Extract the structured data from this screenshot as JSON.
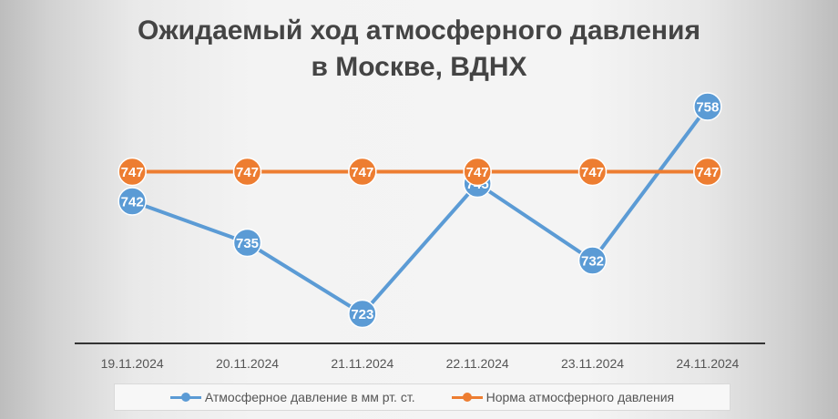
{
  "chart_data": {
    "type": "line",
    "title_line1": "Ожидаемый ход атмосферного давления",
    "title_line2": "в Москве, ВДНХ",
    "categories": [
      "19.11.2024",
      "20.11.2024",
      "21.11.2024",
      "22.11.2024",
      "23.11.2024",
      "24.11.2024"
    ],
    "series": [
      {
        "name": "Атмосферное давление в мм рт. ст.",
        "values": [
          742,
          735,
          723,
          745,
          732,
          758
        ],
        "color": "#5B9BD5"
      },
      {
        "name": "Норма атмосферного давления",
        "values": [
          747,
          747,
          747,
          747,
          747,
          747
        ],
        "color": "#ED7D31"
      }
    ],
    "ylim": [
      718,
      758
    ],
    "y_axis_labels_shown": false,
    "grid": true,
    "legend_position": "bottom",
    "data_labels": true
  }
}
